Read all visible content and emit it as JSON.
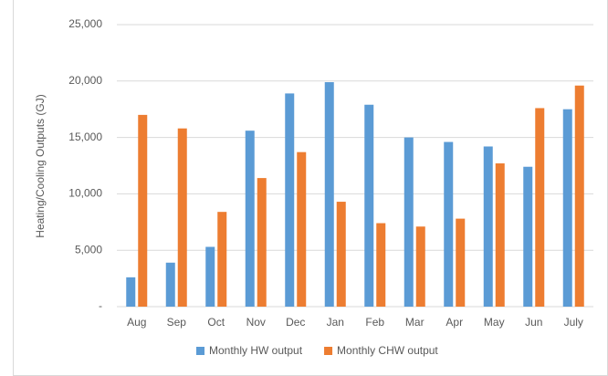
{
  "chart_data": {
    "type": "bar",
    "y_axis_label": "Heating/Cooling Outputs (GJ)",
    "categories": [
      "Aug",
      "Sep",
      "Oct",
      "Nov",
      "Dec",
      "Jan",
      "Feb",
      "Mar",
      "Apr",
      "May",
      "Jun",
      "July"
    ],
    "series": [
      {
        "name": "Monthly HW output",
        "color": "#5b9bd5",
        "values": [
          2600,
          3900,
          5300,
          15600,
          18900,
          19900,
          17900,
          15000,
          14600,
          14200,
          12400,
          17500
        ]
      },
      {
        "name": "Monthly CHW output",
        "color": "#ed7d31",
        "values": [
          17000,
          15800,
          8400,
          11400,
          13700,
          9300,
          7400,
          7100,
          7800,
          12700,
          17600,
          19600
        ]
      }
    ],
    "ylim": [
      0,
      25000
    ],
    "yticks": [
      {
        "value": 0,
        "label": "-"
      },
      {
        "value": 5000,
        "label": "5,000"
      },
      {
        "value": 10000,
        "label": "10,000"
      },
      {
        "value": 15000,
        "label": "15,000"
      },
      {
        "value": 20000,
        "label": "20,000"
      },
      {
        "value": 25000,
        "label": "25,000"
      }
    ],
    "grid": true,
    "legend": "bottom"
  }
}
